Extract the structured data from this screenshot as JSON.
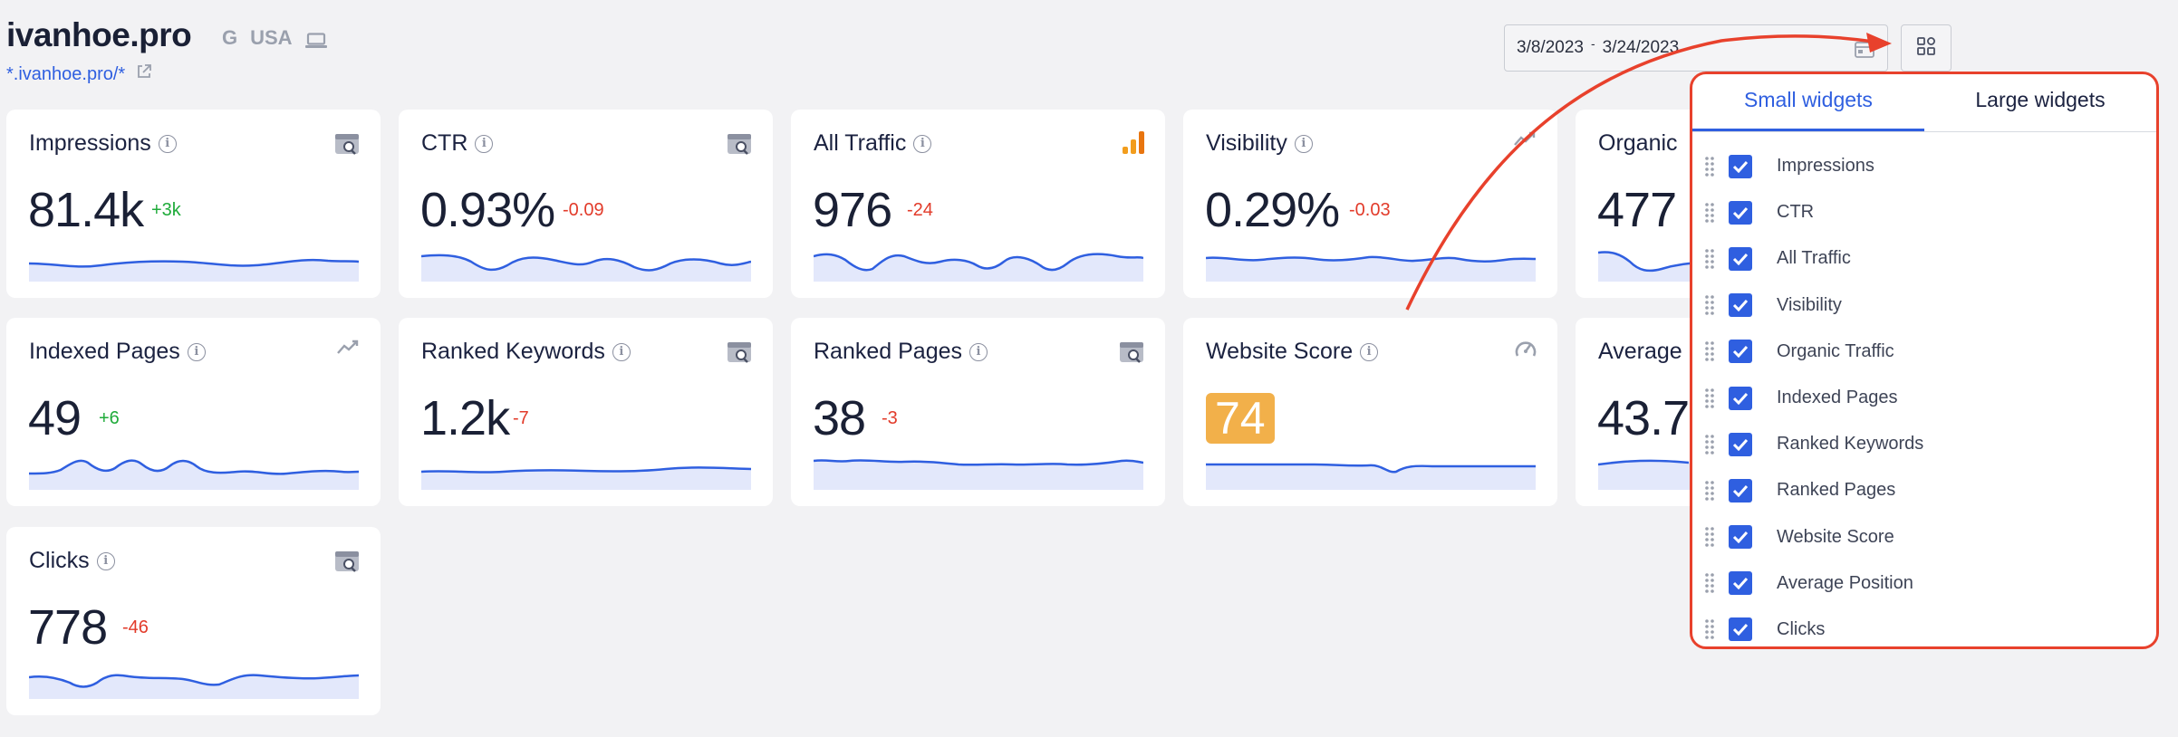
{
  "header": {
    "site_title": "ivanhoe.pro",
    "engine_letter": "G",
    "country": "USA",
    "site_link": "*.ivanhoe.pro/*",
    "date_start": "3/8/2023",
    "date_sep": "-",
    "date_end": "3/24/2023"
  },
  "cards": [
    {
      "title": "Impressions",
      "value": "81.4k",
      "delta": "+3k",
      "trend": "up",
      "icon": "search-console-icon"
    },
    {
      "title": "CTR",
      "value": "0.93%",
      "delta": "-0.09",
      "trend": "down",
      "icon": "search-console-icon"
    },
    {
      "title": "All Traffic",
      "value": "976",
      "delta": "-24",
      "trend": "down",
      "icon": "analytics-icon"
    },
    {
      "title": "Visibility",
      "value": "0.29%",
      "delta": "-0.03",
      "trend": "down",
      "icon": "trend-icon"
    },
    {
      "title": "Organic",
      "value": "477",
      "delta": "",
      "trend": "",
      "icon": ""
    },
    {
      "title": "Indexed Pages",
      "value": "49",
      "delta": "+6",
      "trend": "up",
      "icon": "trend-icon"
    },
    {
      "title": "Ranked Keywords",
      "value": "1.2k",
      "delta": "-7",
      "trend": "down",
      "icon": "search-console-icon"
    },
    {
      "title": "Ranked Pages",
      "value": "38",
      "delta": "-3",
      "trend": "down",
      "icon": "search-console-icon"
    },
    {
      "title": "Website Score",
      "value": "74",
      "delta": "",
      "trend": "",
      "icon": "gauge-icon"
    },
    {
      "title": "Average",
      "value": "43.7",
      "delta": "",
      "trend": "",
      "icon": ""
    },
    {
      "title": "Clicks",
      "value": "778",
      "delta": "-46",
      "trend": "down",
      "icon": "search-console-icon"
    }
  ],
  "popup": {
    "tab_small": "Small widgets",
    "tab_large": "Large widgets",
    "items": [
      {
        "label": "Impressions",
        "checked": true
      },
      {
        "label": "CTR",
        "checked": true
      },
      {
        "label": "All Traffic",
        "checked": true
      },
      {
        "label": "Visibility",
        "checked": true
      },
      {
        "label": "Organic Traffic",
        "checked": true
      },
      {
        "label": "Indexed Pages",
        "checked": true
      },
      {
        "label": "Ranked Keywords",
        "checked": true
      },
      {
        "label": "Ranked Pages",
        "checked": true
      },
      {
        "label": "Website Score",
        "checked": true
      },
      {
        "label": "Average Position",
        "checked": true
      },
      {
        "label": "Clicks",
        "checked": true
      }
    ]
  },
  "colors": {
    "accent": "#2f5fe0",
    "annotation": "#e8412c",
    "up": "#1fab3a",
    "down": "#e23b2a",
    "score": "#f2b04a"
  }
}
